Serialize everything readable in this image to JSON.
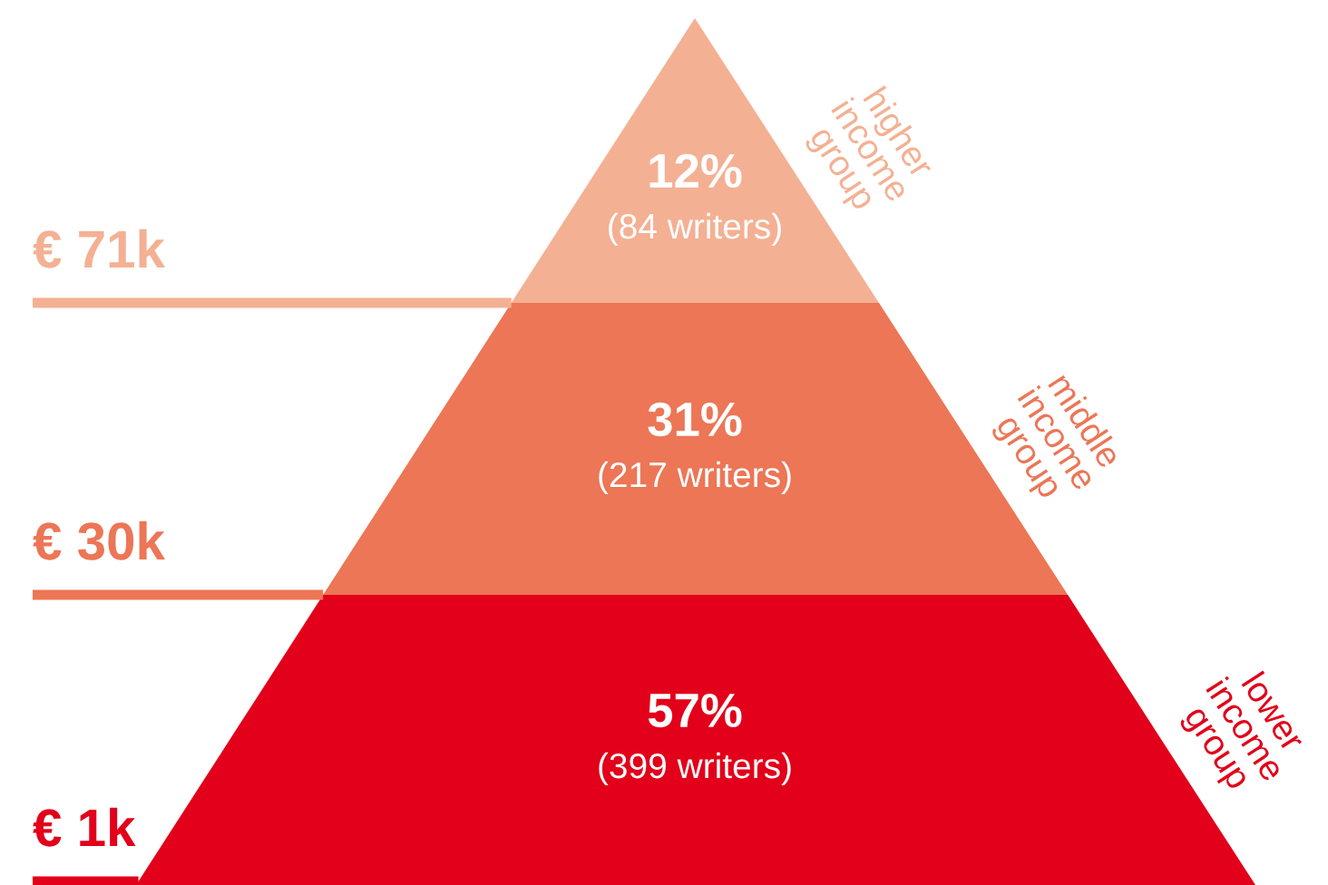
{
  "chart_data": {
    "type": "other",
    "categories": [
      "higher income group",
      "middle income group",
      "lower income group"
    ],
    "values": [
      12,
      31,
      57
    ],
    "value_labels": [
      "12%",
      "31%",
      "57%"
    ],
    "colors": [
      "#f4b093",
      "#ec7656",
      "#e2001a"
    ],
    "annotations": [
      "(84 writers)",
      "(217 writers)",
      "(399 writers)",
      "€ 71k",
      "€ 30k",
      "€ 1k"
    ]
  }
}
